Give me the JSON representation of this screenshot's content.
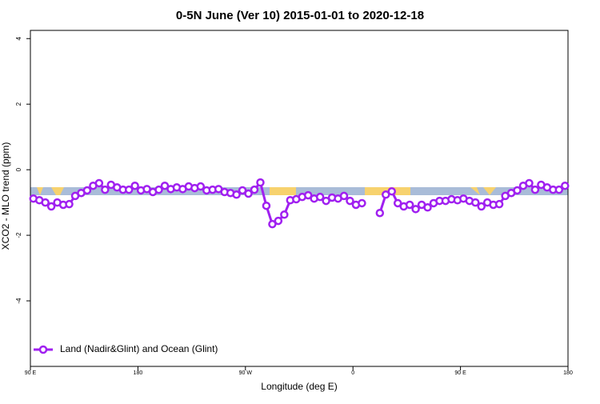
{
  "chart_data": {
    "type": "line",
    "title": "0-5N June (Ver 10)   2015-01-01 to 2020-12-18",
    "x_label": "Longitude (deg E)",
    "y_label": "XCO2 - MLO trend (ppm)",
    "xlim": [
      90,
      540
    ],
    "ylim": [
      -6,
      4.25
    ],
    "xticks": [
      {
        "value": 90,
        "label": "90 E"
      },
      180,
      {
        "value": 270,
        "label": "90 W"
      },
      {
        "value": 360,
        "label": "0"
      },
      {
        "value": 450,
        "label": "90 E"
      },
      {
        "value": 540,
        "label": "180"
      }
    ],
    "yticks": [
      4,
      2,
      0,
      -2,
      -4
    ],
    "legend": "bottom-left",
    "x": [
      92.5,
      97.5,
      102.5,
      107.5,
      112.5,
      117.5,
      122.5,
      127.5,
      132.5,
      137.5,
      142.5,
      147.5,
      152.5,
      157.5,
      162.5,
      167.5,
      172.5,
      177.5,
      182.5,
      187.5,
      192.5,
      197.5,
      202.5,
      207.5,
      212.5,
      217.5,
      222.5,
      227.5,
      232.5,
      237.5,
      242.5,
      247.5,
      252.5,
      257.5,
      262.5,
      267.5,
      272.5,
      277.5,
      282.5,
      287.5,
      292.5,
      297.5,
      302.5,
      307.5,
      312.5,
      317.5,
      322.5,
      327.5,
      332.5,
      337.5,
      342.5,
      347.5,
      352.5,
      357.5,
      362.5,
      367.5,
      372.5,
      377.5,
      382.5,
      387.5,
      392.5,
      397.5,
      402.5,
      407.5,
      412.5,
      417.5,
      422.5,
      427.5,
      432.5,
      437.5,
      442.5,
      447.5,
      452.5,
      457.5,
      462.5,
      467.5,
      472.5,
      477.5,
      482.5,
      487.5,
      492.5,
      497.5,
      502.5,
      507.5,
      512.5,
      517.5,
      522.5,
      527.5,
      532.5,
      537.5
    ],
    "series": [
      {
        "name": "Land (Nadir&Glint) and Ocean (Glint)",
        "color": "#a020f0",
        "values": [
          -0.88,
          -0.93,
          -1.0,
          -1.12,
          -1.0,
          -1.07,
          -1.05,
          -0.8,
          -0.71,
          -0.63,
          -0.49,
          -0.41,
          -0.61,
          -0.46,
          -0.54,
          -0.61,
          -0.61,
          -0.49,
          -0.63,
          -0.59,
          -0.68,
          -0.61,
          -0.49,
          -0.59,
          -0.54,
          -0.59,
          -0.51,
          -0.56,
          -0.51,
          -0.63,
          -0.61,
          -0.59,
          -0.68,
          -0.71,
          -0.76,
          -0.63,
          -0.73,
          -0.61,
          -0.39,
          -1.1,
          -1.66,
          -1.56,
          -1.37,
          -0.93,
          -0.9,
          -0.83,
          -0.78,
          -0.88,
          -0.83,
          -0.95,
          -0.85,
          -0.88,
          -0.8,
          -0.95,
          -1.07,
          -1.02,
          null,
          null,
          -1.32,
          -0.76,
          -0.66,
          -1.02,
          -1.12,
          -1.07,
          -1.2,
          -1.07,
          -1.15,
          -1.02,
          -0.95,
          -0.95,
          -0.9,
          -0.93,
          -0.88,
          -0.95,
          -1.0,
          -1.12,
          -1.0,
          -1.07,
          -1.05,
          -0.8,
          -0.71,
          -0.63,
          -0.49,
          -0.41,
          -0.61,
          -0.46,
          -0.54,
          -0.61,
          -0.61,
          -0.49
        ]
      }
    ]
  }
}
